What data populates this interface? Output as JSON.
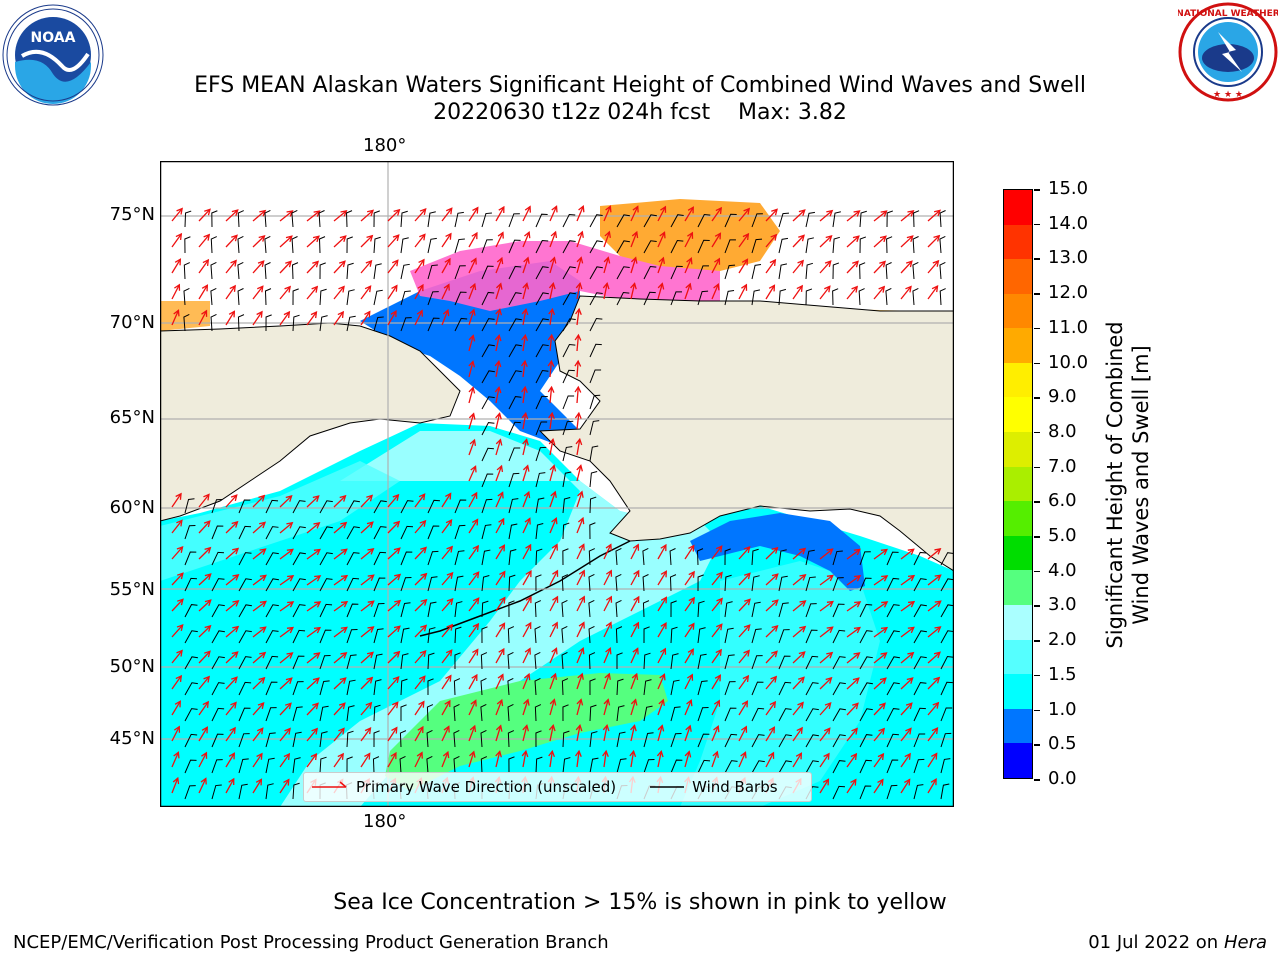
{
  "header": {
    "title_line1": "EFS MEAN Alaskan Waters Significant Height of Combined Wind Waves and Swell",
    "title_line2": "20220630 t12z 024h fcst    Max: 3.82"
  },
  "logos": {
    "noaa": {
      "text": "NOAA",
      "ring_text": "NATIONAL OCEANIC AND ATMOSPHERIC ADMINISTRATION · U.S. DEPARTMENT OF COMMERCE"
    },
    "nws": {
      "ring_text": "NATIONAL WEATHER SERVICE"
    }
  },
  "map": {
    "lon_label_top": "180°",
    "lon_label_bottom": "180°",
    "lat_labels": [
      "75°N",
      "70°N",
      "65°N",
      "60°N",
      "55°N",
      "50°N",
      "45°N"
    ],
    "legend": {
      "wave_label": "Primary Wave Direction (unscaled)",
      "wind_label": "Wind Barbs",
      "wave_color": "#ee1111",
      "wind_color": "#000000"
    },
    "colors": {
      "land": "#efecdc",
      "ocean_base": "#00ffff",
      "grid": "#b0b0b0"
    }
  },
  "colorbar": {
    "label_line1": "Significant Height of Combined",
    "label_line2": "Wind Waves and Swell [m]",
    "ticks": [
      "15.0",
      "14.0",
      "13.0",
      "12.0",
      "11.0",
      "10.0",
      "9.0",
      "8.0",
      "7.0",
      "6.0",
      "5.0",
      "4.0",
      "3.0",
      "2.0",
      "1.5",
      "1.0",
      "0.5",
      "0.0"
    ],
    "colors_bottom_to_top": [
      "#0000ff",
      "#0076ff",
      "#00ffff",
      "#55ffff",
      "#aaffff",
      "#55ff7f",
      "#00dd00",
      "#55ee00",
      "#aaee00",
      "#ddee00",
      "#ffff00",
      "#ffee00",
      "#ffaa00",
      "#ff8800",
      "#ff6600",
      "#ff3300",
      "#ff0000"
    ]
  },
  "chart_data": {
    "type": "heatmap",
    "title": "EFS MEAN Alaskan Waters Significant Height of Combined Wind Waves and Swell",
    "subtitle": "20220630 t12z 024h fcst    Max: 3.82",
    "max_value": 3.82,
    "units": "m",
    "colorbar_levels": [
      0.0,
      0.5,
      1.0,
      1.5,
      2.0,
      3.0,
      4.0,
      5.0,
      6.0,
      7.0,
      8.0,
      9.0,
      10.0,
      11.0,
      12.0,
      13.0,
      14.0,
      15.0
    ]
  },
  "footer": {
    "note": "Sea Ice Concentration > 15% is shown in pink to yellow",
    "left": "NCEP/EMC/Verification Post Processing Product Generation Branch",
    "right_prefix": "01 Jul 2022 on ",
    "right_host": "Hera"
  }
}
